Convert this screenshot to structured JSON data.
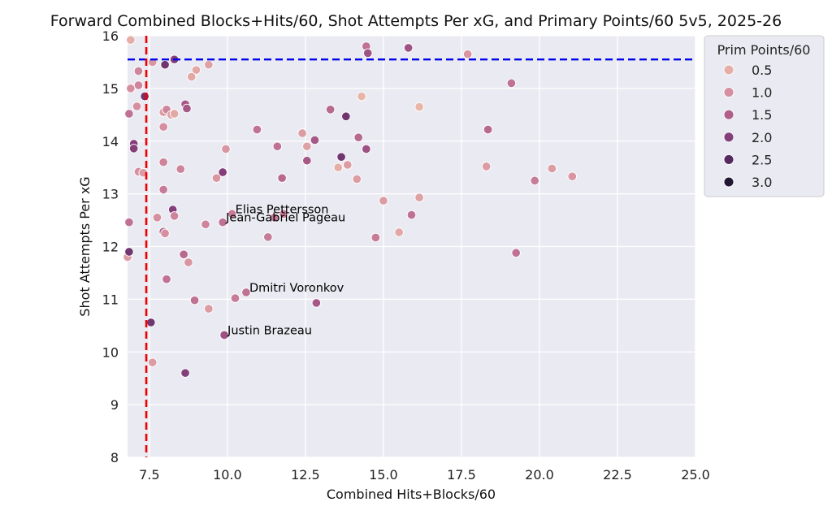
{
  "chart_data": {
    "type": "scatter",
    "title": "Forward Combined Blocks+Hits/60, Shot Attempts Per xG, and Primary Points/60 5v5, 2025-26",
    "xlabel": "Combined Hits+Blocks/60",
    "ylabel": "Shot Attempts Per xG",
    "xlim": [
      6.8,
      25.0
    ],
    "ylim": [
      8,
      16
    ],
    "xticks": [
      7.5,
      10.0,
      12.5,
      15.0,
      17.5,
      20.0,
      22.5,
      25.0
    ],
    "xtick_labels": [
      "7.5",
      "10.0",
      "12.5",
      "15.0",
      "17.5",
      "20.0",
      "22.5",
      "25.0"
    ],
    "yticks": [
      8,
      9,
      10,
      11,
      12,
      13,
      14,
      15,
      16
    ],
    "ytick_labels": [
      "8",
      "9",
      "10",
      "11",
      "12",
      "13",
      "14",
      "15",
      "16"
    ],
    "grid": true,
    "hline": {
      "y": 15.55,
      "color": "#0000ee",
      "style": "dashed"
    },
    "vline": {
      "x": 7.4,
      "color": "#ee0000",
      "style": "dashed"
    },
    "color_encoding": "Prim Points/60",
    "legend": {
      "title": "Prim Points/60",
      "placement": "outside-top-right",
      "entries": [
        {
          "label": "0.5",
          "value": 0.5
        },
        {
          "label": "1.0",
          "value": 1.0
        },
        {
          "label": "1.5",
          "value": 1.5
        },
        {
          "label": "2.0",
          "value": 2.0
        },
        {
          "label": "2.5",
          "value": 2.5
        },
        {
          "label": "3.0",
          "value": 3.0
        }
      ]
    },
    "points": [
      {
        "x": 6.9,
        "y": 15.92,
        "c": 0.5
      },
      {
        "x": 7.6,
        "y": 15.5,
        "c": 0.9
      },
      {
        "x": 8.0,
        "y": 15.45,
        "c": 2.2
      },
      {
        "x": 8.3,
        "y": 15.55,
        "c": 2.0
      },
      {
        "x": 9.4,
        "y": 15.45,
        "c": 0.7
      },
      {
        "x": 9.0,
        "y": 15.35,
        "c": 0.6
      },
      {
        "x": 8.85,
        "y": 15.22,
        "c": 0.6
      },
      {
        "x": 7.15,
        "y": 15.33,
        "c": 1.1
      },
      {
        "x": 7.15,
        "y": 15.06,
        "c": 1.1
      },
      {
        "x": 6.9,
        "y": 15.0,
        "c": 1.0
      },
      {
        "x": 7.35,
        "y": 14.85,
        "c": 2.2
      },
      {
        "x": 7.1,
        "y": 14.66,
        "c": 1.0
      },
      {
        "x": 6.85,
        "y": 14.52,
        "c": 1.3
      },
      {
        "x": 7.95,
        "y": 14.55,
        "c": 0.8
      },
      {
        "x": 8.05,
        "y": 14.6,
        "c": 1.1
      },
      {
        "x": 8.2,
        "y": 14.5,
        "c": 0.7
      },
      {
        "x": 8.3,
        "y": 14.52,
        "c": 0.6
      },
      {
        "x": 8.65,
        "y": 14.7,
        "c": 1.6
      },
      {
        "x": 8.7,
        "y": 14.62,
        "c": 1.6
      },
      {
        "x": 7.95,
        "y": 14.27,
        "c": 1.0
      },
      {
        "x": 7.0,
        "y": 13.95,
        "c": 2.0
      },
      {
        "x": 7.0,
        "y": 13.86,
        "c": 2.0
      },
      {
        "x": 7.95,
        "y": 13.6,
        "c": 1.1
      },
      {
        "x": 8.5,
        "y": 13.47,
        "c": 1.1
      },
      {
        "x": 7.15,
        "y": 13.42,
        "c": 1.0
      },
      {
        "x": 7.3,
        "y": 13.4,
        "c": 0.8
      },
      {
        "x": 9.65,
        "y": 13.3,
        "c": 0.9
      },
      {
        "x": 9.85,
        "y": 13.41,
        "c": 2.0
      },
      {
        "x": 9.95,
        "y": 13.85,
        "c": 0.9
      },
      {
        "x": 7.95,
        "y": 13.08,
        "c": 1.2
      },
      {
        "x": 8.25,
        "y": 12.7,
        "c": 2.0
      },
      {
        "x": 8.3,
        "y": 12.58,
        "c": 1.1
      },
      {
        "x": 7.75,
        "y": 12.55,
        "c": 1.0
      },
      {
        "x": 6.85,
        "y": 12.46,
        "c": 1.3
      },
      {
        "x": 7.95,
        "y": 12.28,
        "c": 1.6
      },
      {
        "x": 8.0,
        "y": 12.25,
        "c": 1.0
      },
      {
        "x": 6.8,
        "y": 11.8,
        "c": 0.8
      },
      {
        "x": 6.85,
        "y": 11.9,
        "c": 2.2
      },
      {
        "x": 8.6,
        "y": 11.85,
        "c": 1.4
      },
      {
        "x": 8.75,
        "y": 11.7,
        "c": 0.9
      },
      {
        "x": 9.3,
        "y": 12.42,
        "c": 1.1
      },
      {
        "x": 9.85,
        "y": 12.46,
        "c": 1.3,
        "label": "Jean-Gabriel Pageau"
      },
      {
        "x": 10.15,
        "y": 12.62,
        "c": 1.2,
        "label": "Elias Pettersson"
      },
      {
        "x": 11.5,
        "y": 12.55,
        "c": 1.2
      },
      {
        "x": 11.8,
        "y": 12.62,
        "c": 1.2
      },
      {
        "x": 11.3,
        "y": 12.18,
        "c": 1.2
      },
      {
        "x": 10.95,
        "y": 14.22,
        "c": 1.3
      },
      {
        "x": 11.6,
        "y": 13.9,
        "c": 1.3
      },
      {
        "x": 11.75,
        "y": 13.3,
        "c": 1.4
      },
      {
        "x": 12.4,
        "y": 14.15,
        "c": 0.8
      },
      {
        "x": 12.55,
        "y": 13.9,
        "c": 0.7
      },
      {
        "x": 12.55,
        "y": 13.63,
        "c": 1.6
      },
      {
        "x": 12.8,
        "y": 14.02,
        "c": 1.6
      },
      {
        "x": 13.3,
        "y": 14.6,
        "c": 1.4
      },
      {
        "x": 13.8,
        "y": 14.47,
        "c": 2.2
      },
      {
        "x": 13.65,
        "y": 13.7,
        "c": 2.2
      },
      {
        "x": 13.55,
        "y": 13.5,
        "c": 0.5
      },
      {
        "x": 13.85,
        "y": 13.55,
        "c": 0.8
      },
      {
        "x": 14.15,
        "y": 13.28,
        "c": 0.8
      },
      {
        "x": 14.2,
        "y": 14.07,
        "c": 1.4
      },
      {
        "x": 14.45,
        "y": 13.85,
        "c": 1.7
      },
      {
        "x": 14.3,
        "y": 14.85,
        "c": 0.4
      },
      {
        "x": 14.45,
        "y": 15.8,
        "c": 1.3
      },
      {
        "x": 14.5,
        "y": 15.67,
        "c": 1.7
      },
      {
        "x": 15.8,
        "y": 15.77,
        "c": 1.7
      },
      {
        "x": 17.7,
        "y": 15.65,
        "c": 0.9
      },
      {
        "x": 16.15,
        "y": 14.65,
        "c": 0.4
      },
      {
        "x": 15.0,
        "y": 12.87,
        "c": 0.8
      },
      {
        "x": 14.75,
        "y": 12.17,
        "c": 1.2
      },
      {
        "x": 15.5,
        "y": 12.27,
        "c": 0.6
      },
      {
        "x": 15.9,
        "y": 12.6,
        "c": 1.3
      },
      {
        "x": 16.15,
        "y": 12.93,
        "c": 0.7
      },
      {
        "x": 18.3,
        "y": 13.52,
        "c": 0.8
      },
      {
        "x": 18.35,
        "y": 14.22,
        "c": 1.4
      },
      {
        "x": 19.1,
        "y": 15.1,
        "c": 1.3
      },
      {
        "x": 19.85,
        "y": 13.25,
        "c": 1.2
      },
      {
        "x": 20.4,
        "y": 13.48,
        "c": 0.8
      },
      {
        "x": 21.05,
        "y": 13.33,
        "c": 0.9
      },
      {
        "x": 19.25,
        "y": 11.88,
        "c": 1.3
      },
      {
        "x": 8.05,
        "y": 11.38,
        "c": 1.3
      },
      {
        "x": 8.95,
        "y": 10.98,
        "c": 1.3
      },
      {
        "x": 9.4,
        "y": 10.82,
        "c": 0.8
      },
      {
        "x": 10.25,
        "y": 11.02,
        "c": 1.2
      },
      {
        "x": 10.6,
        "y": 11.13,
        "c": 1.3,
        "label": "Dmitri Voronkov"
      },
      {
        "x": 12.85,
        "y": 10.93,
        "c": 1.6
      },
      {
        "x": 7.55,
        "y": 10.56,
        "c": 2.2
      },
      {
        "x": 9.9,
        "y": 10.32,
        "c": 1.7,
        "label": "Justin Brazeau"
      },
      {
        "x": 7.6,
        "y": 9.8,
        "c": 0.8
      },
      {
        "x": 8.65,
        "y": 9.6,
        "c": 2.0
      }
    ]
  }
}
